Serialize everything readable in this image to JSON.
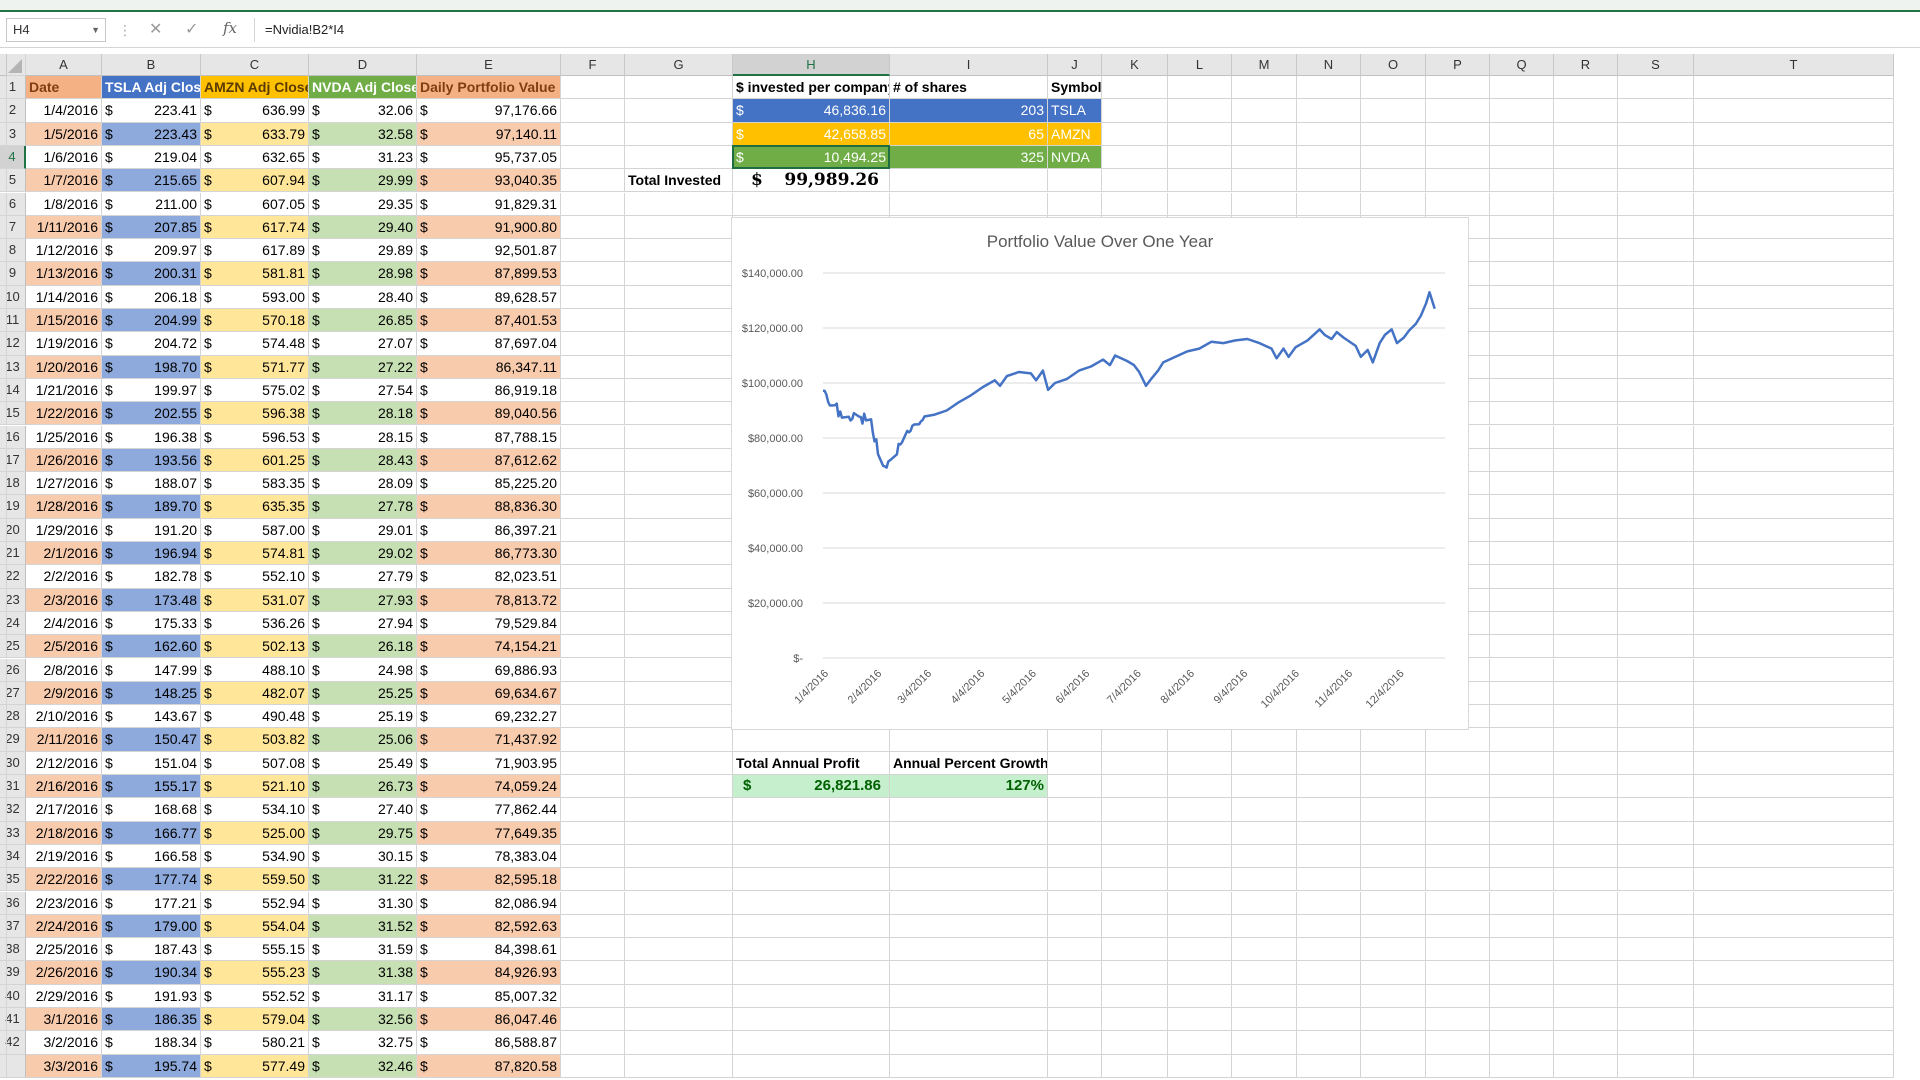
{
  "namebox": "H4",
  "formula_bar": {
    "cancel_icon": "cross-icon",
    "enter_icon": "check-icon",
    "fx": "fx",
    "formula": "=Nvidia!B2*I4"
  },
  "columns": [
    "A",
    "B",
    "C",
    "D",
    "E",
    "F",
    "G",
    "H",
    "I",
    "J",
    "K",
    "L",
    "M",
    "N",
    "O",
    "P",
    "Q",
    "R",
    "S",
    "T"
  ],
  "headers": {
    "date": "Date",
    "tsla": "TSLA Adj Close",
    "amzn": "AMZN Adj Close",
    "nvda": "NVDA Adj Close",
    "value": "Daily Portfolio Value"
  },
  "currency_symbol": "$",
  "rows": [
    [
      "1/4/2016",
      "223.41",
      "636.99",
      "32.06",
      "97,176.66"
    ],
    [
      "1/5/2016",
      "223.43",
      "633.79",
      "32.58",
      "97,140.11"
    ],
    [
      "1/6/2016",
      "219.04",
      "632.65",
      "31.23",
      "95,737.05"
    ],
    [
      "1/7/2016",
      "215.65",
      "607.94",
      "29.99",
      "93,040.35"
    ],
    [
      "1/8/2016",
      "211.00",
      "607.05",
      "29.35",
      "91,829.31"
    ],
    [
      "1/11/2016",
      "207.85",
      "617.74",
      "29.40",
      "91,900.80"
    ],
    [
      "1/12/2016",
      "209.97",
      "617.89",
      "29.89",
      "92,501.87"
    ],
    [
      "1/13/2016",
      "200.31",
      "581.81",
      "28.98",
      "87,899.53"
    ],
    [
      "1/14/2016",
      "206.18",
      "593.00",
      "28.40",
      "89,628.57"
    ],
    [
      "1/15/2016",
      "204.99",
      "570.18",
      "26.85",
      "87,401.53"
    ],
    [
      "1/19/2016",
      "204.72",
      "574.48",
      "27.07",
      "87,697.04"
    ],
    [
      "1/20/2016",
      "198.70",
      "571.77",
      "27.22",
      "86,347.11"
    ],
    [
      "1/21/2016",
      "199.97",
      "575.02",
      "27.54",
      "86,919.18"
    ],
    [
      "1/22/2016",
      "202.55",
      "596.38",
      "28.18",
      "89,040.56"
    ],
    [
      "1/25/2016",
      "196.38",
      "596.53",
      "28.15",
      "87,788.15"
    ],
    [
      "1/26/2016",
      "193.56",
      "601.25",
      "28.43",
      "87,612.62"
    ],
    [
      "1/27/2016",
      "188.07",
      "583.35",
      "28.09",
      "85,225.20"
    ],
    [
      "1/28/2016",
      "189.70",
      "635.35",
      "27.78",
      "88,836.30"
    ],
    [
      "1/29/2016",
      "191.20",
      "587.00",
      "29.01",
      "86,397.21"
    ],
    [
      "2/1/2016",
      "196.94",
      "574.81",
      "29.02",
      "86,773.30"
    ],
    [
      "2/2/2016",
      "182.78",
      "552.10",
      "27.79",
      "82,023.51"
    ],
    [
      "2/3/2016",
      "173.48",
      "531.07",
      "27.93",
      "78,813.72"
    ],
    [
      "2/4/2016",
      "175.33",
      "536.26",
      "27.94",
      "79,529.84"
    ],
    [
      "2/5/2016",
      "162.60",
      "502.13",
      "26.18",
      "74,154.21"
    ],
    [
      "2/8/2016",
      "147.99",
      "488.10",
      "24.98",
      "69,886.93"
    ],
    [
      "2/9/2016",
      "148.25",
      "482.07",
      "25.25",
      "69,634.67"
    ],
    [
      "2/10/2016",
      "143.67",
      "490.48",
      "25.19",
      "69,232.27"
    ],
    [
      "2/11/2016",
      "150.47",
      "503.82",
      "25.06",
      "71,437.92"
    ],
    [
      "2/12/2016",
      "151.04",
      "507.08",
      "25.49",
      "71,903.95"
    ],
    [
      "2/16/2016",
      "155.17",
      "521.10",
      "26.73",
      "74,059.24"
    ],
    [
      "2/17/2016",
      "168.68",
      "534.10",
      "27.40",
      "77,862.44"
    ],
    [
      "2/18/2016",
      "166.77",
      "525.00",
      "29.75",
      "77,649.35"
    ],
    [
      "2/19/2016",
      "166.58",
      "534.90",
      "30.15",
      "78,383.04"
    ],
    [
      "2/22/2016",
      "177.74",
      "559.50",
      "31.22",
      "82,595.18"
    ],
    [
      "2/23/2016",
      "177.21",
      "552.94",
      "31.30",
      "82,086.94"
    ],
    [
      "2/24/2016",
      "179.00",
      "554.04",
      "31.52",
      "82,592.63"
    ],
    [
      "2/25/2016",
      "187.43",
      "555.15",
      "31.59",
      "84,398.61"
    ],
    [
      "2/26/2016",
      "190.34",
      "555.23",
      "31.38",
      "84,926.93"
    ],
    [
      "2/29/2016",
      "191.93",
      "552.52",
      "31.17",
      "85,007.32"
    ],
    [
      "3/1/2016",
      "186.35",
      "579.04",
      "32.56",
      "86,047.46"
    ],
    [
      "3/2/2016",
      "188.34",
      "580.21",
      "32.75",
      "86,588.87"
    ],
    [
      "3/3/2016",
      "195.74",
      "577.49",
      "32.46",
      "87,820.58"
    ]
  ],
  "summary": {
    "invested_header": "$ invested per company",
    "shares_header": "# of shares",
    "symbol_header": "Symbol",
    "items": [
      {
        "invested": "46,836.16",
        "shares": "203",
        "symbol": "TSLA"
      },
      {
        "invested": "42,658.85",
        "shares": "65",
        "symbol": "AMZN"
      },
      {
        "invested": "10,494.25",
        "shares": "325",
        "symbol": "NVDA"
      }
    ],
    "total_label": "Total Invested",
    "total_value": "99,989.26",
    "profit_label": "Total Annual Profit",
    "growth_label": "Annual Percent Growth",
    "profit_value": "26,821.86",
    "growth_value": "127%"
  },
  "colors": {
    "orange": "#f8cbad",
    "orange_header": "#f4b183",
    "blue": "#8ea9db",
    "blue_header": "#4472c4",
    "yellow": "#ffe699",
    "yellow_header": "#ffc000",
    "green": "#c6e0b4",
    "green_header": "#70ad47",
    "line": "#4472c4",
    "light_green": "#c6efce",
    "dark_green": "#006100"
  },
  "chart_data": {
    "type": "line",
    "title": "Portfolio Value Over One Year",
    "xlabel": "",
    "ylabel": "",
    "x_ticks": [
      "1/4/2016",
      "2/4/2016",
      "3/4/2016",
      "4/4/2016",
      "5/4/2016",
      "6/4/2016",
      "7/4/2016",
      "8/4/2016",
      "9/4/2016",
      "10/4/2016",
      "11/4/2016",
      "12/4/2016"
    ],
    "y_ticks": [
      "$-",
      "$20,000.00",
      "$40,000.00",
      "$60,000.00",
      "$80,000.00",
      "$100,000.00",
      "$120,000.00",
      "$140,000.00"
    ],
    "ylim": [
      0,
      140000
    ],
    "xlim": [
      0,
      362
    ],
    "grid": true,
    "series": [
      {
        "points": [
          [
            0,
            97177
          ],
          [
            1,
            97140
          ],
          [
            2,
            95737
          ],
          [
            3,
            93040
          ],
          [
            4,
            91829
          ],
          [
            7,
            91901
          ],
          [
            8,
            92502
          ],
          [
            9,
            87900
          ],
          [
            10,
            89629
          ],
          [
            11,
            87402
          ],
          [
            15,
            87697
          ],
          [
            16,
            86347
          ],
          [
            17,
            86919
          ],
          [
            18,
            89041
          ],
          [
            21,
            87788
          ],
          [
            22,
            87613
          ],
          [
            23,
            85225
          ],
          [
            24,
            88836
          ],
          [
            25,
            86397
          ],
          [
            28,
            86773
          ],
          [
            29,
            82024
          ],
          [
            30,
            78814
          ],
          [
            31,
            79530
          ],
          [
            32,
            74154
          ],
          [
            35,
            69887
          ],
          [
            36,
            69635
          ],
          [
            37,
            69232
          ],
          [
            38,
            71438
          ],
          [
            39,
            71904
          ],
          [
            43,
            74059
          ],
          [
            44,
            77862
          ],
          [
            45,
            77649
          ],
          [
            46,
            78383
          ],
          [
            49,
            82595
          ],
          [
            50,
            82087
          ],
          [
            51,
            82593
          ],
          [
            52,
            84399
          ],
          [
            53,
            84927
          ],
          [
            56,
            85007
          ],
          [
            57,
            86047
          ],
          [
            58,
            86589
          ],
          [
            59,
            87821
          ],
          [
            65,
            88500
          ],
          [
            72,
            90000
          ],
          [
            79,
            93000
          ],
          [
            86,
            95500
          ],
          [
            93,
            98500
          ],
          [
            100,
            101000
          ],
          [
            103,
            99000
          ],
          [
            107,
            102500
          ],
          [
            114,
            104000
          ],
          [
            121,
            103500
          ],
          [
            124,
            101000
          ],
          [
            128,
            104500
          ],
          [
            131,
            97500
          ],
          [
            135,
            100000
          ],
          [
            142,
            101500
          ],
          [
            149,
            104500
          ],
          [
            156,
            106000
          ],
          [
            163,
            108500
          ],
          [
            167,
            106500
          ],
          [
            170,
            110000
          ],
          [
            177,
            108000
          ],
          [
            181,
            106500
          ],
          [
            184,
            104000
          ],
          [
            188,
            99000
          ],
          [
            191,
            101500
          ],
          [
            195,
            104500
          ],
          [
            198,
            107500
          ],
          [
            205,
            109500
          ],
          [
            212,
            111500
          ],
          [
            219,
            112500
          ],
          [
            226,
            115000
          ],
          [
            233,
            114500
          ],
          [
            240,
            115500
          ],
          [
            247,
            116000
          ],
          [
            254,
            114500
          ],
          [
            261,
            112500
          ],
          [
            264,
            109000
          ],
          [
            268,
            112500
          ],
          [
            271,
            109500
          ],
          [
            275,
            113000
          ],
          [
            282,
            115500
          ],
          [
            289,
            119500
          ],
          [
            292,
            117500
          ],
          [
            296,
            116000
          ],
          [
            299,
            118500
          ],
          [
            303,
            116500
          ],
          [
            310,
            113500
          ],
          [
            313,
            109500
          ],
          [
            317,
            112000
          ],
          [
            320,
            107500
          ],
          [
            324,
            114500
          ],
          [
            327,
            117500
          ],
          [
            331,
            119500
          ],
          [
            334,
            114500
          ],
          [
            338,
            116500
          ],
          [
            341,
            119000
          ],
          [
            345,
            121500
          ],
          [
            348,
            124500
          ],
          [
            351,
            129000
          ],
          [
            353,
            133000
          ],
          [
            356,
            127000
          ]
        ]
      }
    ]
  }
}
